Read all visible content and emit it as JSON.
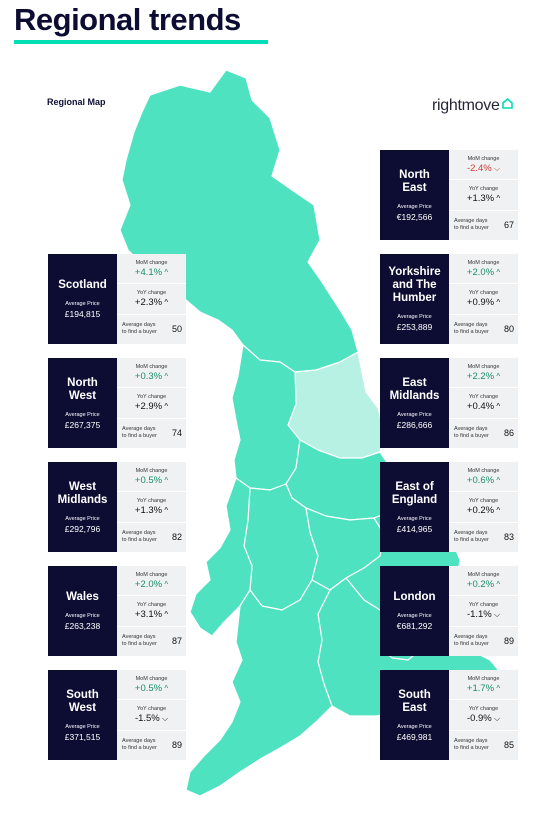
{
  "header": {
    "title": "Regional trends",
    "map_label": "Regional Map",
    "brand": "rightmove"
  },
  "labels": {
    "avg_price": "Average Price",
    "mom": "MoM change",
    "yoy": "YoY change",
    "days_line1": "Average days",
    "days_line2": "to find a buyer"
  },
  "colors": {
    "navy": "#0d0d33",
    "map": "#4ee2c1",
    "map_highlight": "#b7f1e3",
    "accent": "#00deb6",
    "negative": "#d2392f",
    "positive": "#1b8f6a"
  },
  "regions": {
    "north_east": {
      "name1": "North",
      "name2": "East",
      "name3": "",
      "price": "€192,566",
      "mom": "-2.4%",
      "mom_dir": "down",
      "yoy": "+1.3%",
      "yoy_dir": "up",
      "days": "67"
    },
    "yorkshire": {
      "name1": "Yorkshire",
      "name2": "and The",
      "name3": "Humber",
      "price": "£253,889",
      "mom": "+2.0%",
      "mom_dir": "up",
      "yoy": "+0.9%",
      "yoy_dir": "up",
      "days": "80"
    },
    "east_midlands": {
      "name1": "East",
      "name2": "Midlands",
      "name3": "",
      "price": "£286,666",
      "mom": "+2.2%",
      "mom_dir": "up",
      "yoy": "+0.4%",
      "yoy_dir": "up",
      "days": "86"
    },
    "east_england": {
      "name1": "East of",
      "name2": "England",
      "name3": "",
      "price": "£414,965",
      "mom": "+0.6%",
      "mom_dir": "up",
      "yoy": "+0.2%",
      "yoy_dir": "up",
      "days": "83"
    },
    "london": {
      "name1": "London",
      "name2": "",
      "name3": "",
      "price": "€681,292",
      "mom": "+0.2%",
      "mom_dir": "up",
      "yoy": "-1.1%",
      "yoy_dir": "down",
      "days": "89"
    },
    "south_east": {
      "name1": "South",
      "name2": "East",
      "name3": "",
      "price": "£469,981",
      "mom": "+1.7%",
      "mom_dir": "up",
      "yoy": "-0.9%",
      "yoy_dir": "down",
      "days": "85"
    },
    "scotland": {
      "name1": "Scotland",
      "name2": "",
      "name3": "",
      "price": "£194,815",
      "mom": "+4.1%",
      "mom_dir": "up",
      "yoy": "+2.3%",
      "yoy_dir": "up",
      "days": "50"
    },
    "north_west": {
      "name1": "North",
      "name2": "West",
      "name3": "",
      "price": "£267,375",
      "mom": "+0.3%",
      "mom_dir": "up",
      "yoy": "+2.9%",
      "yoy_dir": "up",
      "days": "74"
    },
    "west_midlands": {
      "name1": "West",
      "name2": "Midlands",
      "name3": "",
      "price": "£292,796",
      "mom": "+0.5%",
      "mom_dir": "up",
      "yoy": "+1.3%",
      "yoy_dir": "up",
      "days": "82"
    },
    "wales": {
      "name1": "Wales",
      "name2": "",
      "name3": "",
      "price": "£263,238",
      "mom": "+2.0%",
      "mom_dir": "up",
      "yoy": "+3.1%",
      "yoy_dir": "up",
      "days": "87"
    },
    "south_west": {
      "name1": "South",
      "name2": "West",
      "name3": "",
      "price": "£371,515",
      "mom": "+0.5%",
      "mom_dir": "up",
      "yoy": "-1.5%",
      "yoy_dir": "down",
      "days": "89"
    }
  }
}
